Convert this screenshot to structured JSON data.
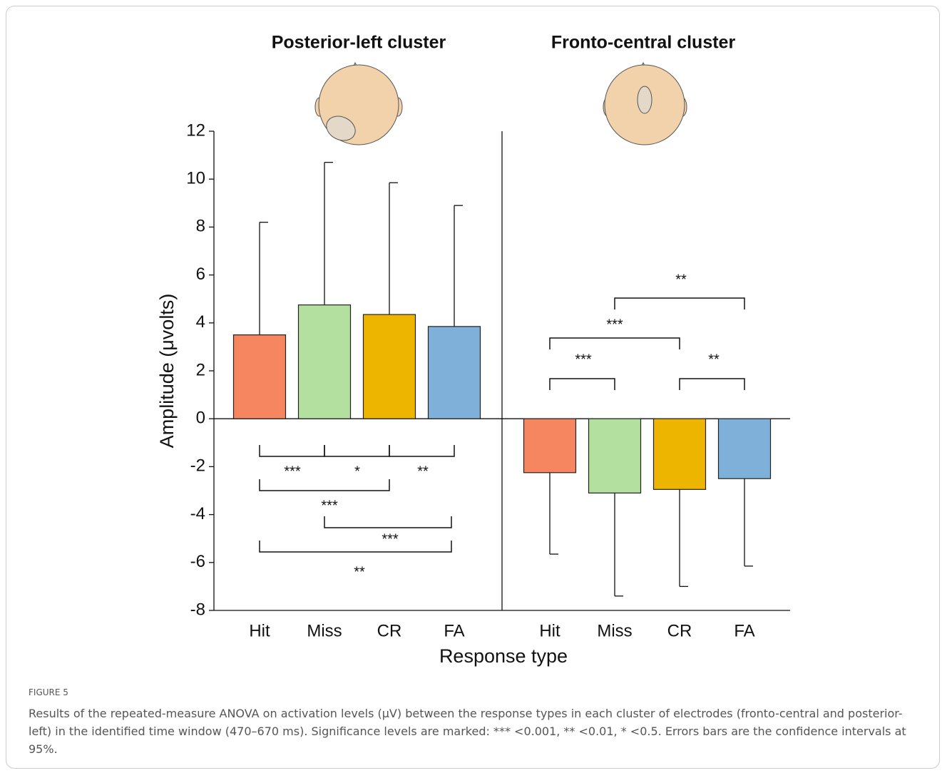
{
  "chart_data": [
    {
      "type": "bar",
      "title": "Posterior-left cluster",
      "categories": [
        "Hit",
        "Miss",
        "CR",
        "FA"
      ],
      "values": [
        3.5,
        4.75,
        4.35,
        3.85
      ],
      "errors": [
        4.7,
        5.95,
        5.5,
        5.05
      ],
      "colors": [
        "#f5865f",
        "#b3e09e",
        "#edb500",
        "#7eb0da"
      ],
      "ylim": [
        -8,
        12
      ],
      "yticks": [
        -8,
        -6,
        -4,
        -2,
        0,
        2,
        4,
        6,
        8,
        10,
        12
      ],
      "y_label": "Amplitude (μvolts)",
      "x_label": "Response type",
      "annotations": [
        {
          "pair": [
            "Hit",
            "Miss"
          ],
          "label": "***"
        },
        {
          "pair": [
            "Miss",
            "CR"
          ],
          "label": "*"
        },
        {
          "pair": [
            "CR",
            "FA"
          ],
          "label": "**"
        },
        {
          "pair": [
            "Hit",
            "CR"
          ],
          "label": "***"
        },
        {
          "pair": [
            "Miss",
            "FA"
          ],
          "label": "***"
        },
        {
          "pair": [
            "Hit",
            "FA"
          ],
          "label": "**"
        }
      ]
    },
    {
      "type": "bar",
      "title": "Fronto-central cluster",
      "categories": [
        "Hit",
        "Miss",
        "CR",
        "FA"
      ],
      "values": [
        -2.25,
        -3.1,
        -2.95,
        -2.5
      ],
      "errors": [
        3.4,
        4.3,
        4.05,
        3.65
      ],
      "colors": [
        "#f5865f",
        "#b3e09e",
        "#edb500",
        "#7eb0da"
      ],
      "annotations": [
        {
          "pair": [
            "Hit",
            "Miss"
          ],
          "label": "***"
        },
        {
          "pair": [
            "Hit",
            "CR"
          ],
          "label": "***"
        },
        {
          "pair": [
            "CR",
            "FA"
          ],
          "label": "**"
        },
        {
          "pair": [
            "Miss",
            "FA"
          ],
          "label": "**"
        }
      ]
    }
  ],
  "caption": {
    "label": "FIGURE 5",
    "text": "Results of the repeated-measure ANOVA on activation levels (μV) between the response types in each cluster of electrodes (fronto-central and posterior-left) in the identified time window (470–670 ms). Significance levels are marked: *** <0.001, ** <0.01, * <0.5. Errors bars are the confidence intervals at 95%."
  }
}
